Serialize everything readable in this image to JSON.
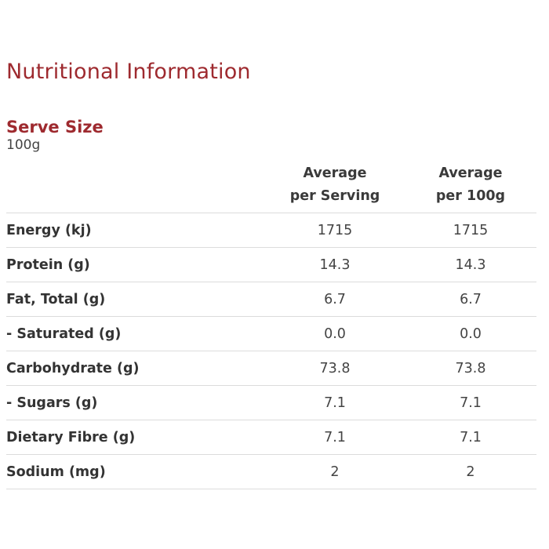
{
  "title": "Nutritional Information",
  "serve": {
    "label": "Serve Size",
    "value": "100g"
  },
  "table": {
    "headers": {
      "per_serving": [
        "Average",
        "per Serving"
      ],
      "per_100g": [
        "Average",
        "per 100g"
      ]
    },
    "rows": [
      {
        "name": "Energy (kj)",
        "per_serving": "1715",
        "per_100g": "1715"
      },
      {
        "name": "Protein (g)",
        "per_serving": "14.3",
        "per_100g": "14.3"
      },
      {
        "name": "Fat, Total (g)",
        "per_serving": "6.7",
        "per_100g": "6.7"
      },
      {
        "name": "- Saturated (g)",
        "per_serving": "0.0",
        "per_100g": "0.0"
      },
      {
        "name": "Carbohydrate (g)",
        "per_serving": "73.8",
        "per_100g": "73.8"
      },
      {
        "name": "- Sugars (g)",
        "per_serving": "7.1",
        "per_100g": "7.1"
      },
      {
        "name": "Dietary Fibre (g)",
        "per_serving": "7.1",
        "per_100g": "7.1"
      },
      {
        "name": "Sodium (mg)",
        "per_serving": "2",
        "per_100g": "2"
      }
    ]
  },
  "colors": {
    "heading": "#9e2a2f",
    "text": "#333333",
    "divider": "#dcdcdc"
  }
}
